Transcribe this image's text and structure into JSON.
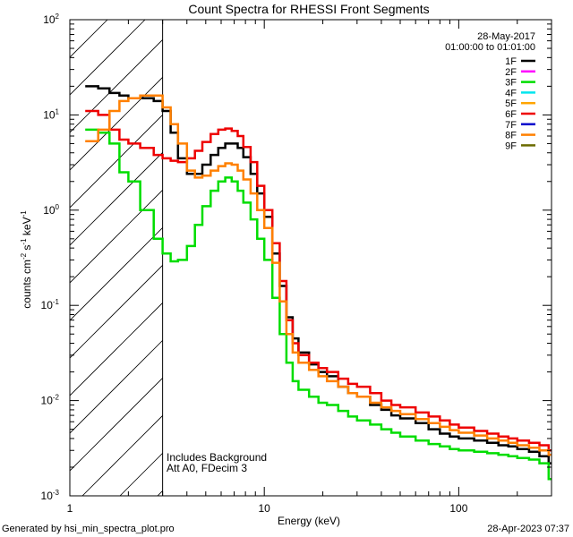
{
  "chart_data": {
    "type": "line",
    "title": "Count Spectra for RHESSI Front Segments",
    "xlabel": "Energy (keV)",
    "ylabel": {
      "prefix": "counts cm",
      "exp1": "-2",
      "mid": " s",
      "exp2": "-1",
      "unit": " keV",
      "exp3": "-1"
    },
    "x_scale": "log",
    "y_scale": "log",
    "xlim": [
      1,
      300
    ],
    "ylim": [
      0.001,
      100
    ],
    "x_ticks": [
      {
        "value": 1,
        "label": "1"
      },
      {
        "value": 10,
        "label": "10"
      },
      {
        "value": 100,
        "label": "100"
      }
    ],
    "y_ticks": [
      {
        "value": 0.001,
        "base": "10",
        "exp": "-3"
      },
      {
        "value": 0.01,
        "base": "10",
        "exp": "-2"
      },
      {
        "value": 0.1,
        "base": "10",
        "exp": "-1"
      },
      {
        "value": 1,
        "base": "10",
        "exp": "0"
      },
      {
        "value": 10,
        "base": "10",
        "exp": "1"
      },
      {
        "value": 100,
        "base": "10",
        "exp": "2"
      }
    ],
    "hatched_region": {
      "x_from": 1,
      "x_to": 3
    },
    "date": "28-May-2017",
    "time_range": "01:00:00 to 01:01:00",
    "annotations": [
      "Includes Background",
      "Att A0, FDecim 3"
    ],
    "legend": [
      {
        "name": "1F",
        "color": "#000000"
      },
      {
        "name": "2F",
        "color": "#ff00ff"
      },
      {
        "name": "3F",
        "color": "#00dd00"
      },
      {
        "name": "4F",
        "color": "#00e5ee"
      },
      {
        "name": "5F",
        "color": "#ffa500"
      },
      {
        "name": "6F",
        "color": "#ee0000"
      },
      {
        "name": "7F",
        "color": "#0000cc"
      },
      {
        "name": "8F",
        "color": "#ff8000"
      },
      {
        "name": "9F",
        "color": "#6b6b00"
      }
    ],
    "series": [
      {
        "name": "1F",
        "color": "#000000",
        "x": [
          1.2,
          1.4,
          1.6,
          1.8,
          2.0,
          2.3,
          2.7,
          3.0,
          3.3,
          3.6,
          4.0,
          4.4,
          4.8,
          5.3,
          5.8,
          6.3,
          6.8,
          7.3,
          7.8,
          8.5,
          9.2,
          10,
          11,
          12,
          13,
          14,
          15,
          17,
          19,
          21,
          24,
          27,
          30,
          35,
          40,
          45,
          50,
          60,
          70,
          80,
          90,
          100,
          120,
          140,
          160,
          180,
          200,
          230,
          260,
          290
        ],
        "y": [
          20,
          19,
          17,
          16,
          15,
          15,
          14,
          11,
          6.5,
          3.5,
          2.4,
          2.4,
          3.0,
          3.8,
          4.5,
          5.0,
          5.0,
          4.5,
          3.6,
          2.4,
          1.5,
          0.85,
          0.35,
          0.16,
          0.075,
          0.045,
          0.032,
          0.024,
          0.02,
          0.018,
          0.014,
          0.012,
          0.011,
          0.009,
          0.008,
          0.007,
          0.0065,
          0.0058,
          0.005,
          0.0045,
          0.0042,
          0.004,
          0.0038,
          0.0036,
          0.0034,
          0.0033,
          0.0031,
          0.0029,
          0.0026,
          0.0022
        ]
      },
      {
        "name": "3F",
        "color": "#00dd00",
        "x": [
          1.2,
          1.4,
          1.6,
          1.8,
          2.0,
          2.3,
          2.7,
          3.0,
          3.3,
          3.6,
          4.0,
          4.4,
          4.8,
          5.3,
          5.8,
          6.3,
          6.8,
          7.3,
          7.8,
          8.5,
          9.2,
          10,
          11,
          12,
          13,
          14,
          15,
          17,
          19,
          21,
          24,
          27,
          30,
          35,
          40,
          45,
          50,
          60,
          70,
          80,
          90,
          100,
          120,
          140,
          160,
          180,
          200,
          230,
          260,
          290
        ],
        "y": [
          7.0,
          6.5,
          5.0,
          2.5,
          2.0,
          1.0,
          0.5,
          0.35,
          0.29,
          0.3,
          0.42,
          0.7,
          1.1,
          1.6,
          2.0,
          2.2,
          2.0,
          1.6,
          1.2,
          0.8,
          0.5,
          0.3,
          0.12,
          0.05,
          0.025,
          0.016,
          0.013,
          0.011,
          0.0095,
          0.009,
          0.0078,
          0.0068,
          0.0062,
          0.0056,
          0.005,
          0.0046,
          0.0042,
          0.0038,
          0.0035,
          0.0033,
          0.0031,
          0.003,
          0.0029,
          0.0028,
          0.0027,
          0.0026,
          0.0025,
          0.0024,
          0.0022,
          0.0015
        ]
      },
      {
        "name": "6F",
        "color": "#ee0000",
        "x": [
          1.2,
          1.4,
          1.6,
          1.8,
          2.0,
          2.3,
          2.7,
          3.0,
          3.3,
          3.6,
          4.0,
          4.4,
          4.8,
          5.3,
          5.8,
          6.3,
          6.8,
          7.3,
          7.8,
          8.5,
          9.2,
          10,
          11,
          12,
          13,
          14,
          15,
          17,
          19,
          21,
          24,
          27,
          30,
          35,
          40,
          45,
          50,
          60,
          70,
          80,
          90,
          100,
          120,
          140,
          160,
          180,
          200,
          230,
          260,
          290
        ],
        "y": [
          11,
          10,
          7.0,
          5.5,
          5.0,
          4.5,
          3.8,
          3.5,
          3.3,
          3.2,
          3.5,
          4.2,
          5.2,
          6.3,
          7.0,
          7.2,
          6.8,
          6.0,
          4.6,
          3.2,
          1.8,
          1.0,
          0.45,
          0.18,
          0.07,
          0.04,
          0.03,
          0.025,
          0.022,
          0.02,
          0.017,
          0.015,
          0.014,
          0.012,
          0.01,
          0.009,
          0.0085,
          0.0075,
          0.0068,
          0.0062,
          0.0056,
          0.0052,
          0.0048,
          0.0045,
          0.0042,
          0.004,
          0.0038,
          0.0036,
          0.0034,
          0.003
        ]
      },
      {
        "name": "8F",
        "color": "#ff8000",
        "x": [
          1.2,
          1.4,
          1.6,
          1.8,
          2.0,
          2.3,
          2.7,
          3.0,
          3.3,
          3.6,
          4.0,
          4.4,
          4.8,
          5.3,
          5.8,
          6.3,
          6.8,
          7.3,
          7.8,
          8.5,
          9.2,
          10,
          11,
          12,
          13,
          14,
          15,
          17,
          19,
          21,
          24,
          27,
          30,
          35,
          40,
          45,
          50,
          60,
          70,
          80,
          90,
          100,
          120,
          140,
          160,
          180,
          200,
          230,
          260,
          290
        ],
        "y": [
          5.3,
          7.0,
          11,
          14,
          15,
          16,
          16,
          12,
          8.0,
          5.0,
          2.6,
          2.2,
          2.3,
          2.6,
          2.9,
          3.1,
          3.0,
          2.6,
          2.1,
          1.5,
          1.0,
          0.65,
          0.28,
          0.11,
          0.05,
          0.032,
          0.025,
          0.021,
          0.018,
          0.016,
          0.014,
          0.012,
          0.011,
          0.0095,
          0.0085,
          0.0078,
          0.0072,
          0.0064,
          0.0058,
          0.0053,
          0.0049,
          0.0046,
          0.0043,
          0.004,
          0.0038,
          0.0036,
          0.0034,
          0.0032,
          0.003,
          0.0027
        ]
      }
    ]
  },
  "footer": {
    "left": "Generated by hsi_min_spectra_plot.pro",
    "right": "28-Apr-2023 07:37"
  }
}
